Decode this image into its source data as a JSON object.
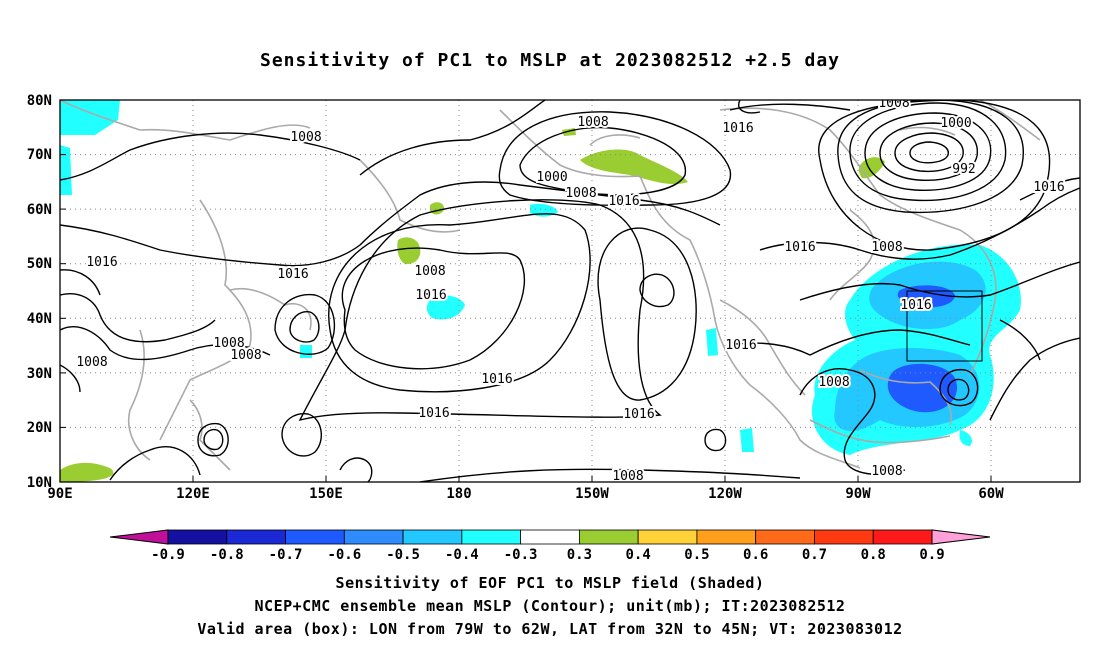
{
  "title": "Sensitivity of PC1 to MSLP at 2023082512 +2.5 day",
  "lat_labels": [
    "80N",
    "70N",
    "60N",
    "50N",
    "40N",
    "30N",
    "20N",
    "10N"
  ],
  "lon_labels": [
    "90E",
    "120E",
    "150E",
    "180",
    "150W",
    "120W",
    "90W",
    "60W"
  ],
  "contour_labels": [
    "1008",
    "1008",
    "1016",
    "1016",
    "1000",
    "1008",
    "1016",
    "1008",
    "1016",
    "1008",
    "1016",
    "1016",
    "1016",
    "1016",
    "1008",
    "1008",
    "1016",
    "1008",
    "1008",
    "1000",
    "992",
    "1016",
    "1016",
    "1008",
    "1016",
    "1008",
    "1008",
    "1008"
  ],
  "colorbar": {
    "labels": [
      "-0.9",
      "-0.8",
      "-0.7",
      "-0.6",
      "-0.5",
      "-0.4",
      "-0.3",
      "0.3",
      "0.4",
      "0.5",
      "0.6",
      "0.7",
      "0.8",
      "0.9"
    ],
    "colors": [
      "#a0007a",
      "#1410a0",
      "#1a28d6",
      "#1e5aff",
      "#2e8cff",
      "#22c8ff",
      "#22ffff",
      "#ffffff",
      "#9acd32",
      "#ffd23a",
      "#ff9f1c",
      "#ff6a1a",
      "#ff3a10",
      "#ff1a1a",
      "#ff9fd0"
    ],
    "lower_arrow": "#c0109a",
    "upper_arrow": "#ffa0d8"
  },
  "footer": [
    "Sensitivity of EOF PC1 to MSLP field (Shaded)",
    "NCEP+CMC ensemble mean MSLP (Contour); unit(mb); IT:2023082512",
    "Valid area (box): LON from 79W to 62W, LAT from 32N to 45N; VT: 2023083012"
  ]
}
